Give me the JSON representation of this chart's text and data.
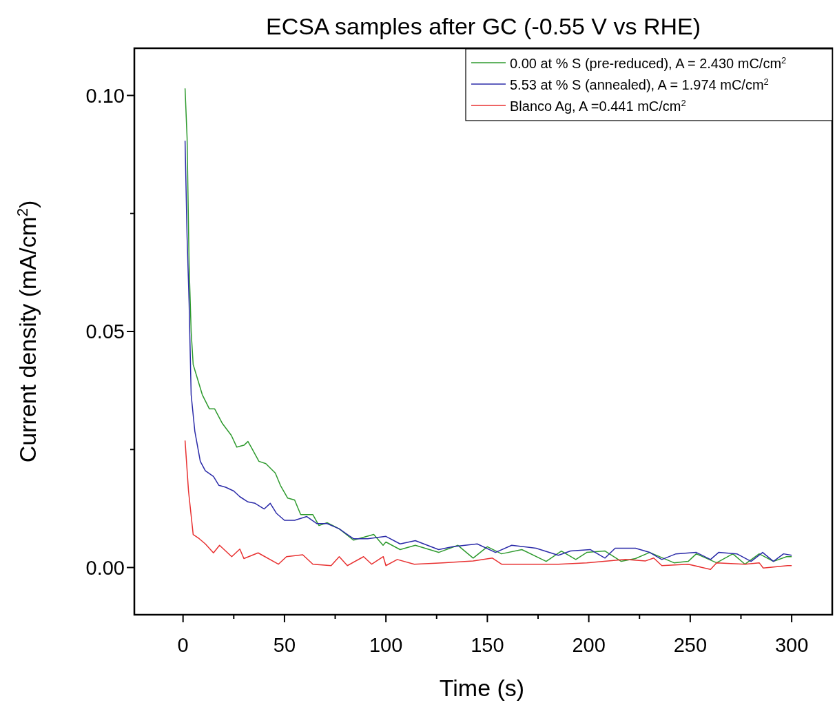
{
  "chart_data": {
    "type": "line",
    "title": "ECSA samples after GC (-0.55 V vs RHE)",
    "xlabel": "Time (s)",
    "ylabel": "Current density (mA/cm$^{2}$)",
    "xlim": [
      -24,
      320
    ],
    "ylim": [
      -0.01,
      0.11
    ],
    "xticks": [
      0,
      {
        "value": 25,
        "label": null
      },
      50,
      {
        "value": 75,
        "label": null
      },
      100,
      {
        "value": 125,
        "label": null
      },
      150,
      {
        "value": 175,
        "label": null
      },
      200,
      {
        "value": 225,
        "label": null
      },
      250,
      {
        "value": 275,
        "label": null
      },
      300
    ],
    "yticks": [
      {
        "value": 0,
        "label": "0.00"
      },
      {
        "value": 0.025,
        "label": null
      },
      {
        "value": 0.05,
        "label": "0.05"
      },
      {
        "value": 0.075,
        "label": null
      },
      {
        "value": 0.1,
        "label": "0.10"
      }
    ],
    "grid": false,
    "legend": "top right",
    "line_style": "solid",
    "marker": "none",
    "series": [
      {
        "name": "0.00 at % S (pre-reduced), A = 2.430 mC/cm$^{2}$",
        "color": "#2e9a2e",
        "x": [
          1,
          2,
          3,
          4,
          5,
          9.5,
          13,
          15.6,
          19.4,
          23.8,
          26.5,
          30,
          32,
          33.6,
          37.4,
          40.8,
          45.5,
          48,
          51.6,
          55,
          58,
          64,
          67,
          71,
          77,
          84,
          94,
          98.6,
          100,
          107,
          114.5,
          126,
          135.5,
          143,
          150,
          157,
          167,
          179,
          186.5,
          193.6,
          199,
          208,
          216,
          223,
          230,
          242,
          249,
          253,
          263,
          271,
          277,
          284,
          291,
          297.5,
          300
        ],
        "values": [
          0.1015,
          0.091,
          0.064,
          0.05,
          0.043,
          0.0366,
          0.0336,
          0.0336,
          0.0305,
          0.028,
          0.0255,
          0.0259,
          0.0267,
          0.0255,
          0.0225,
          0.022,
          0.02,
          0.0174,
          0.0147,
          0.0143,
          0.0112,
          0.0112,
          0.0089,
          0.0095,
          0.0082,
          0.0058,
          0.007,
          0.0047,
          0.0054,
          0.0038,
          0.0047,
          0.0032,
          0.0047,
          0.002,
          0.0044,
          0.0029,
          0.0038,
          0.0013,
          0.0035,
          0.0017,
          0.0032,
          0.0035,
          0.0013,
          0.0019,
          0.0032,
          0.001,
          0.0013,
          0.0029,
          0.001,
          0.0029,
          0.0007,
          0.0029,
          0.0013,
          0.0023,
          0.0023
        ]
      },
      {
        "name": "5.53 at % S (annealed), A = 1.974 mC/cm$^{2}$",
        "color": "#2a2aa8",
        "x": [
          1,
          2,
          3,
          4,
          5.8,
          8.5,
          11,
          15,
          17.7,
          21,
          25,
          28,
          32,
          35.5,
          40,
          43,
          46,
          50,
          55,
          61,
          66,
          71,
          77,
          84,
          91,
          100,
          107,
          114.5,
          126,
          133,
          145,
          154,
          162,
          174,
          185,
          191,
          200.7,
          208,
          213,
          223,
          230,
          236,
          243,
          253,
          260,
          264,
          273,
          280,
          285.7,
          291,
          296,
          300
        ],
        "values": [
          0.0904,
          0.07,
          0.056,
          0.0366,
          0.0289,
          0.0225,
          0.0205,
          0.0193,
          0.0174,
          0.017,
          0.0162,
          0.015,
          0.0139,
          0.0136,
          0.0124,
          0.0136,
          0.0115,
          0.01,
          0.01,
          0.0108,
          0.0093,
          0.0093,
          0.0082,
          0.0061,
          0.0061,
          0.0066,
          0.005,
          0.0057,
          0.0038,
          0.0044,
          0.005,
          0.0032,
          0.0047,
          0.0041,
          0.0026,
          0.0035,
          0.0038,
          0.002,
          0.0041,
          0.0041,
          0.0032,
          0.0017,
          0.0029,
          0.0032,
          0.0017,
          0.0032,
          0.0029,
          0.0013,
          0.0032,
          0.0013,
          0.0029,
          0.0026
        ]
      },
      {
        "name": "Blanco Ag, A =0.441 mC/cm$^{2}$",
        "color": "#e83030",
        "x": [
          1,
          2.7,
          5,
          8,
          11,
          15,
          18,
          24,
          28,
          30,
          37,
          47,
          51,
          59,
          64,
          73,
          77,
          81,
          89,
          93,
          98.7,
          100,
          105.6,
          114,
          128,
          143,
          152.5,
          157,
          171,
          185,
          199,
          218,
          228,
          232,
          236,
          249,
          260,
          263,
          277,
          284,
          286,
          298,
          300
        ],
        "values": [
          0.0269,
          0.0162,
          0.007,
          0.0061,
          0.005,
          0.0031,
          0.0047,
          0.0023,
          0.0039,
          0.0019,
          0.0031,
          0.0007,
          0.0023,
          0.0027,
          0.0007,
          0.0004,
          0.0023,
          0.0004,
          0.0023,
          0.0007,
          0.0023,
          0.0004,
          0.0017,
          0.0007,
          0.001,
          0.0014,
          0.002,
          0.0007,
          0.0007,
          0.0007,
          0.001,
          0.0017,
          0.0014,
          0.002,
          0.0004,
          0.0007,
          -0.0004,
          0.001,
          0.0007,
          0.001,
          -0.0001,
          0.0004,
          0.0004
        ]
      }
    ]
  }
}
